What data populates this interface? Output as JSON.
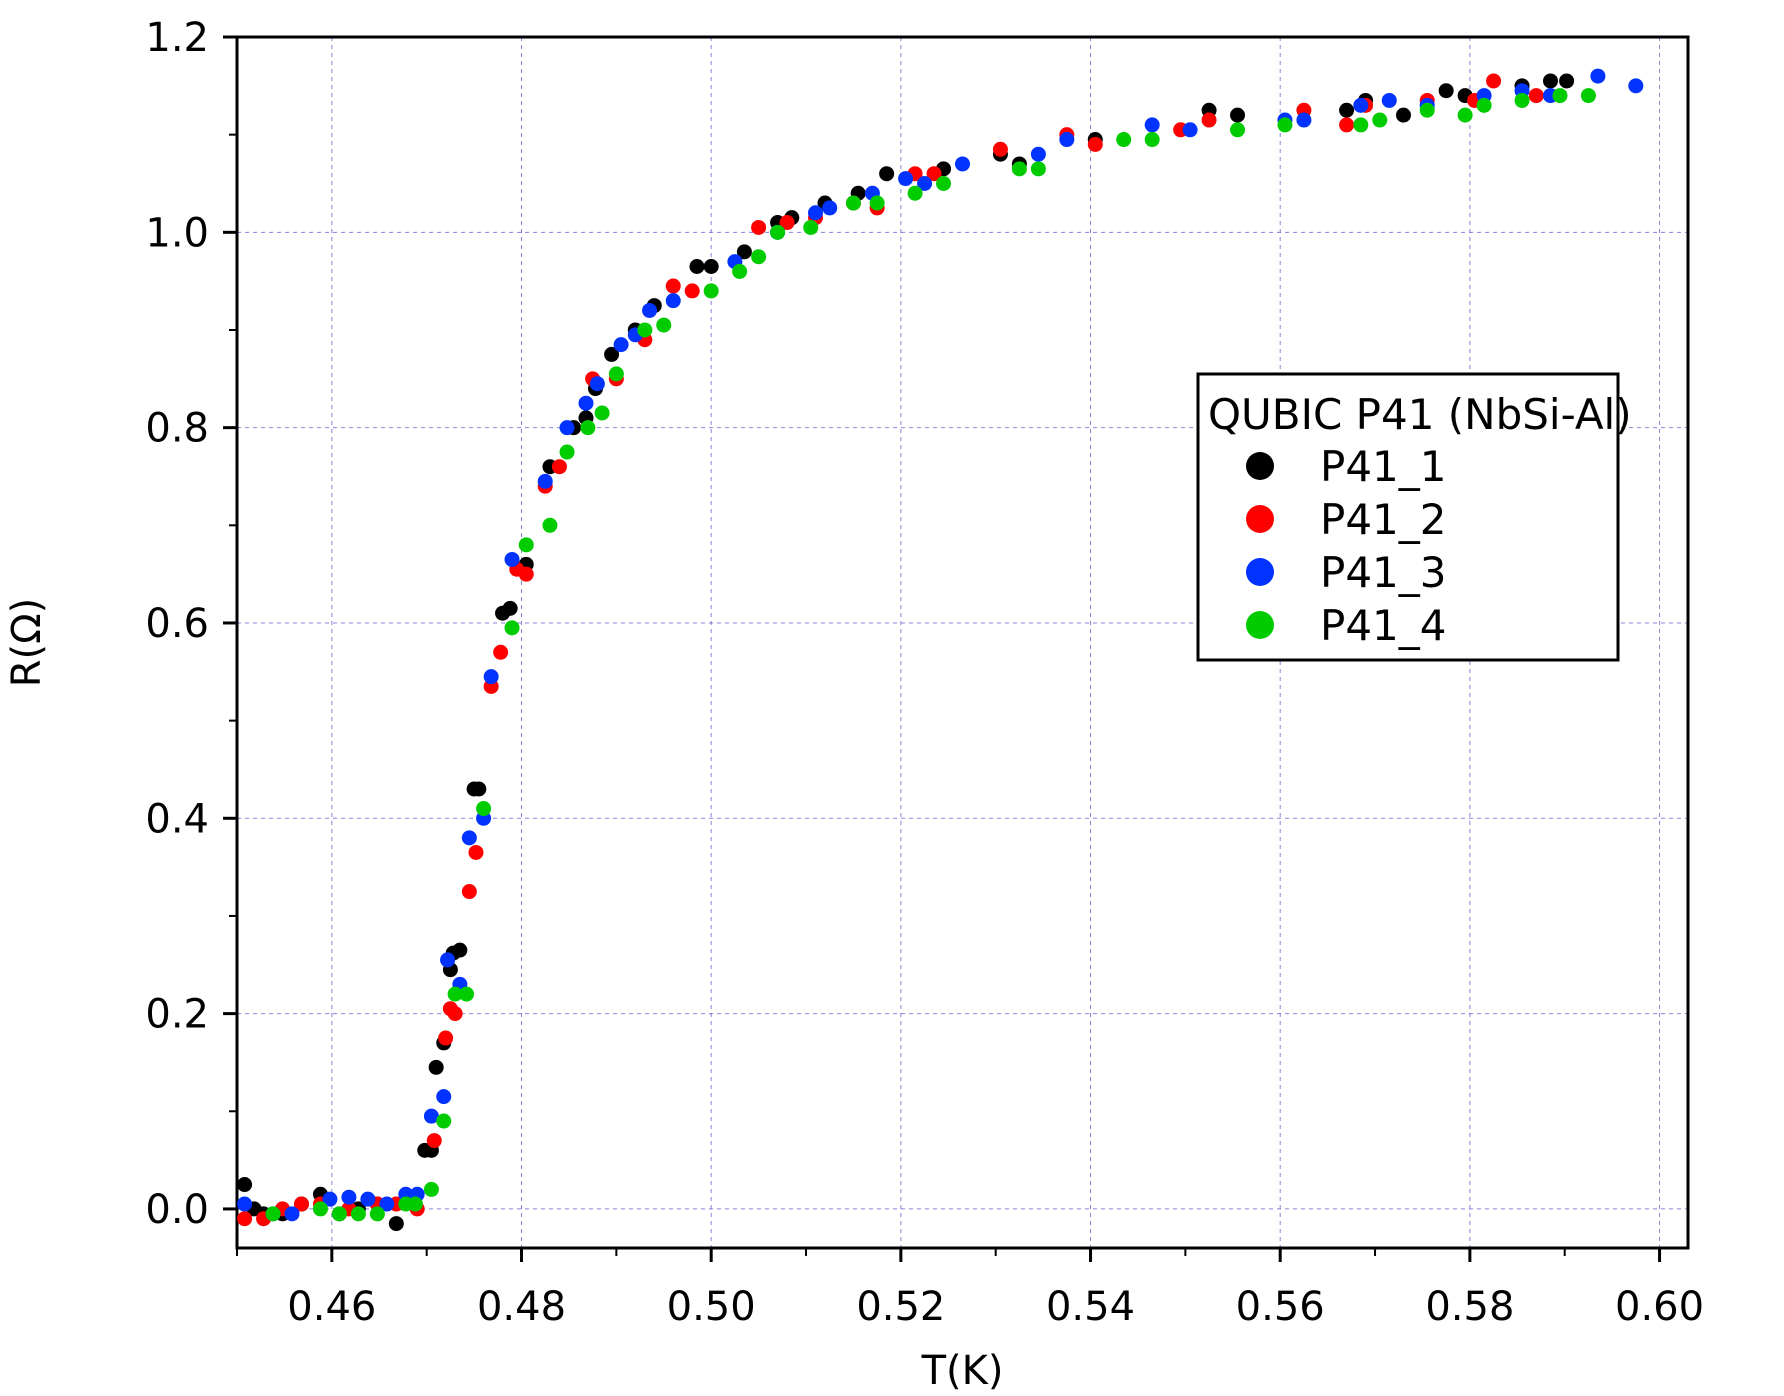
{
  "chart_data": {
    "type": "scatter",
    "xlabel": "T(K)",
    "ylabel": "R(Ω)",
    "xlim": [
      0.45,
      0.603
    ],
    "ylim": [
      -0.04,
      1.2
    ],
    "xticks": [
      0.46,
      0.48,
      0.5,
      0.52,
      0.54,
      0.56,
      0.58,
      0.6
    ],
    "yticks": [
      0.0,
      0.2,
      0.4,
      0.6,
      0.8,
      1.0,
      1.2
    ],
    "xtick_labels": [
      "0.46",
      "0.48",
      "0.50",
      "0.52",
      "0.54",
      "0.56",
      "0.58",
      "0.60"
    ],
    "ytick_labels": [
      "0.0",
      "0.2",
      "0.4",
      "0.6",
      "0.8",
      "1.0",
      "1.2"
    ],
    "grid": true,
    "legend_title": "QUBIC P41 (NbSi-Al)",
    "legend_position": "right",
    "series": [
      {
        "name": "P41_1",
        "color": "#000000",
        "x": [
          0.4508,
          0.4518,
          0.4528,
          0.4548,
          0.4568,
          0.4588,
          0.4608,
          0.4628,
          0.4648,
          0.4668,
          0.4688,
          0.4698,
          0.4705,
          0.471,
          0.4718,
          0.4725,
          0.4728,
          0.4735,
          0.475,
          0.4755,
          0.478,
          0.4788,
          0.4805,
          0.483,
          0.4855,
          0.4868,
          0.4878,
          0.4895,
          0.492,
          0.494,
          0.4985,
          0.5,
          0.5035,
          0.507,
          0.5085,
          0.512,
          0.5155,
          0.5185,
          0.5245,
          0.5305,
          0.5325,
          0.5405,
          0.5525,
          0.5555,
          0.567,
          0.569,
          0.573,
          0.5775,
          0.5795,
          0.5855,
          0.5885,
          0.5902
        ],
        "y": [
          0.025,
          0.0,
          -0.005,
          -0.005,
          0.005,
          0.015,
          -0.005,
          0.0,
          0.005,
          -0.015,
          0.005,
          0.06,
          0.06,
          0.145,
          0.17,
          0.245,
          0.262,
          0.265,
          0.43,
          0.43,
          0.61,
          0.615,
          0.66,
          0.76,
          0.8,
          0.81,
          0.84,
          0.875,
          0.9,
          0.925,
          0.965,
          0.965,
          0.98,
          1.01,
          1.015,
          1.03,
          1.04,
          1.06,
          1.065,
          1.08,
          1.07,
          1.095,
          1.125,
          1.12,
          1.125,
          1.135,
          1.12,
          1.145,
          1.14,
          1.15,
          1.155,
          1.155
        ]
      },
      {
        "name": "P41_2",
        "color": "#ff0000",
        "x": [
          0.4508,
          0.4528,
          0.4548,
          0.4568,
          0.4588,
          0.4618,
          0.4648,
          0.4668,
          0.469,
          0.4708,
          0.472,
          0.4725,
          0.473,
          0.4745,
          0.4752,
          0.4768,
          0.4778,
          0.4795,
          0.4805,
          0.4825,
          0.484,
          0.4875,
          0.49,
          0.493,
          0.496,
          0.498,
          0.505,
          0.508,
          0.511,
          0.515,
          0.5175,
          0.5215,
          0.5235,
          0.5305,
          0.5375,
          0.5405,
          0.5495,
          0.5525,
          0.5625,
          0.567,
          0.569,
          0.5755,
          0.5805,
          0.5825,
          0.587
        ],
        "y": [
          -0.01,
          -0.01,
          0.0,
          0.005,
          0.005,
          0.0,
          0.005,
          0.005,
          0.0,
          0.07,
          0.175,
          0.205,
          0.2,
          0.325,
          0.365,
          0.535,
          0.57,
          0.655,
          0.65,
          0.74,
          0.76,
          0.85,
          0.85,
          0.89,
          0.945,
          0.94,
          1.005,
          1.01,
          1.015,
          1.03,
          1.025,
          1.06,
          1.06,
          1.085,
          1.1,
          1.09,
          1.105,
          1.115,
          1.125,
          1.11,
          1.13,
          1.135,
          1.135,
          1.155,
          1.14
        ]
      },
      {
        "name": "P41_3",
        "color": "#0033ff",
        "x": [
          0.4508,
          0.4538,
          0.4558,
          0.4598,
          0.4618,
          0.4638,
          0.4658,
          0.4678,
          0.469,
          0.4705,
          0.4718,
          0.4722,
          0.4735,
          0.4745,
          0.476,
          0.4768,
          0.479,
          0.4825,
          0.4848,
          0.4868,
          0.488,
          0.4905,
          0.492,
          0.4935,
          0.496,
          0.5025,
          0.507,
          0.511,
          0.5125,
          0.517,
          0.5205,
          0.5225,
          0.5265,
          0.5345,
          0.5375,
          0.5465,
          0.5505,
          0.5605,
          0.5625,
          0.5685,
          0.5715,
          0.5755,
          0.5815,
          0.5855,
          0.5885,
          0.5935,
          0.5975
        ],
        "y": [
          0.005,
          -0.005,
          -0.005,
          0.01,
          0.012,
          0.01,
          0.005,
          0.015,
          0.015,
          0.095,
          0.115,
          0.255,
          0.23,
          0.38,
          0.4,
          0.545,
          0.665,
          0.745,
          0.8,
          0.825,
          0.845,
          0.885,
          0.895,
          0.92,
          0.93,
          0.97,
          1.0,
          1.02,
          1.025,
          1.04,
          1.055,
          1.05,
          1.07,
          1.08,
          1.095,
          1.11,
          1.105,
          1.115,
          1.115,
          1.13,
          1.135,
          1.13,
          1.14,
          1.145,
          1.14,
          1.16,
          1.15
        ]
      },
      {
        "name": "P41_4",
        "color": "#00cc00",
        "x": [
          0.4538,
          0.4588,
          0.4608,
          0.4628,
          0.4648,
          0.4678,
          0.4688,
          0.4705,
          0.4718,
          0.473,
          0.4742,
          0.476,
          0.479,
          0.4805,
          0.483,
          0.4848,
          0.487,
          0.4885,
          0.49,
          0.493,
          0.495,
          0.5,
          0.503,
          0.505,
          0.507,
          0.5105,
          0.515,
          0.5175,
          0.5215,
          0.5245,
          0.5325,
          0.5345,
          0.5435,
          0.5465,
          0.5555,
          0.5605,
          0.5685,
          0.5705,
          0.5755,
          0.5795,
          0.5815,
          0.5855,
          0.5895,
          0.5925
        ],
        "y": [
          -0.005,
          0.0,
          -0.005,
          -0.005,
          -0.005,
          0.005,
          0.005,
          0.02,
          0.09,
          0.22,
          0.22,
          0.41,
          0.595,
          0.68,
          0.7,
          0.775,
          0.8,
          0.815,
          0.855,
          0.9,
          0.905,
          0.94,
          0.96,
          0.975,
          1.0,
          1.005,
          1.03,
          1.03,
          1.04,
          1.05,
          1.065,
          1.065,
          1.095,
          1.095,
          1.105,
          1.11,
          1.11,
          1.115,
          1.125,
          1.12,
          1.13,
          1.135,
          1.14,
          1.14
        ]
      }
    ]
  }
}
